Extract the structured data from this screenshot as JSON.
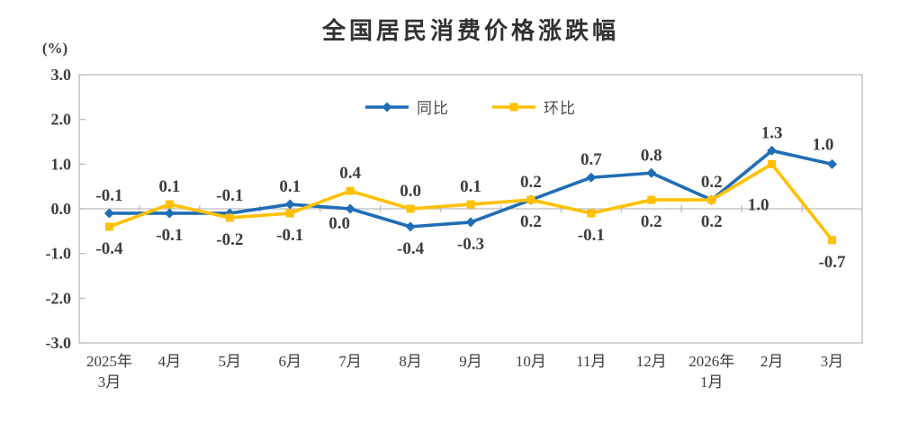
{
  "figure": {
    "title": "全国居民消费价格涨跌幅",
    "y_unit_label": "(%)"
  },
  "chart_data": {
    "type": "line",
    "title": "全国居民消费价格涨跌幅",
    "ylabel": "(%)",
    "categories": [
      [
        "2025年",
        "3月"
      ],
      [
        "4月"
      ],
      [
        "5月"
      ],
      [
        "6月"
      ],
      [
        "7月"
      ],
      [
        "8月"
      ],
      [
        "9月"
      ],
      [
        "10月"
      ],
      [
        "11月"
      ],
      [
        "12月"
      ],
      [
        "2026年",
        "1月"
      ],
      [
        "2月"
      ],
      [
        "3月"
      ]
    ],
    "series": [
      {
        "name": "同比",
        "color": "#1F6DB6",
        "marker": "diamond",
        "values": [
          -0.1,
          -0.1,
          -0.1,
          0.1,
          0.0,
          -0.4,
          -0.3,
          0.2,
          0.7,
          0.8,
          0.2,
          1.3,
          1.0
        ]
      },
      {
        "name": "环比",
        "color": "#FFC000",
        "marker": "square",
        "values": [
          -0.4,
          0.1,
          -0.2,
          -0.1,
          0.4,
          0.0,
          0.1,
          0.2,
          -0.1,
          0.2,
          0.2,
          1.0,
          -0.7
        ]
      }
    ],
    "ylim": [
      -3,
      3
    ],
    "ytick_labels": [
      "3.0",
      "2.0",
      "1.0",
      "0.0",
      "-1.0",
      "-2.0",
      "-3.0"
    ],
    "grid": "zero-line-only",
    "legend_position": "top-center",
    "axis_color": "#bdbdbd",
    "text_color": "#3d3d3d",
    "label_overrides": {
      "0": {
        "4": {
          "dx": -12,
          "dy": -8
        },
        "12": {
          "dx": -10,
          "dy": -2
        }
      },
      "1": {
        "11": {
          "dx": -15,
          "dy": 21
        }
      }
    }
  }
}
